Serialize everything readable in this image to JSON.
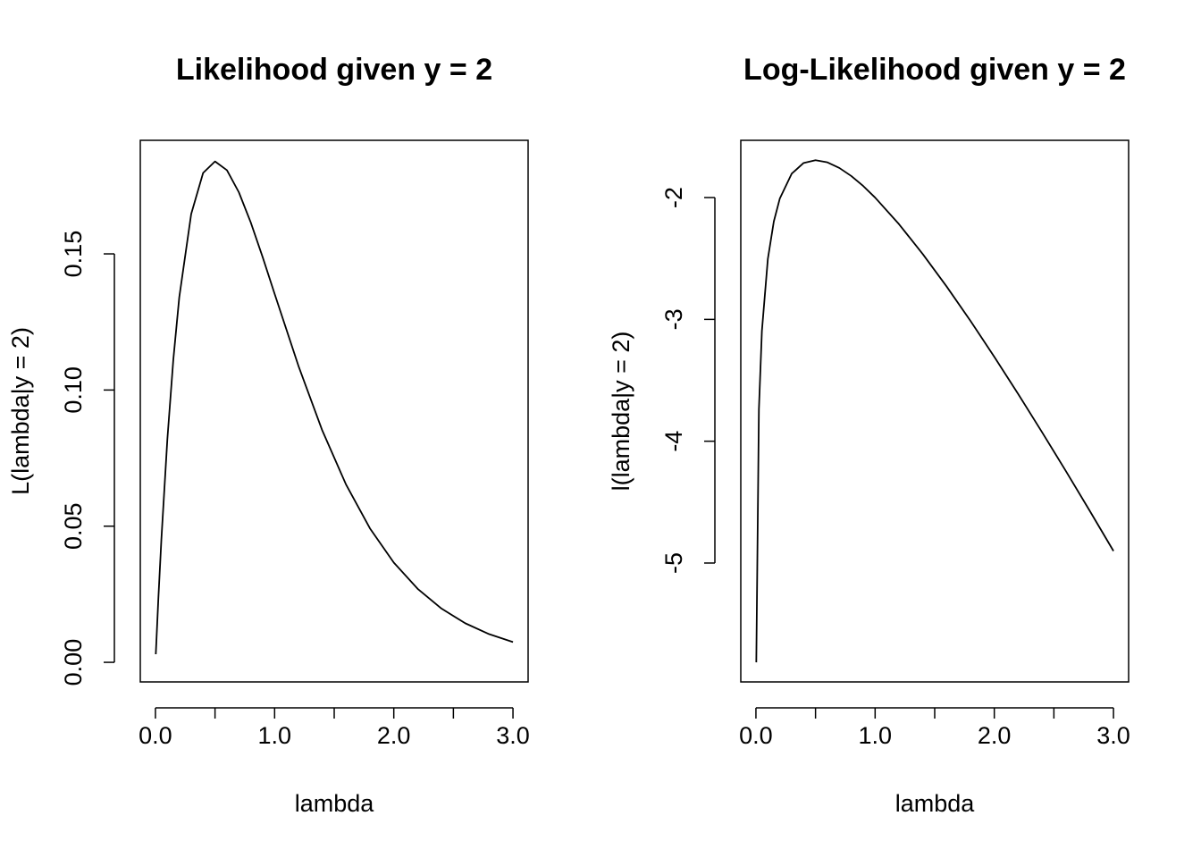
{
  "chart_data": [
    {
      "type": "line",
      "title": "Likelihood given y = 2",
      "x_label": "lambda",
      "y_label": "L(lambda|y = 2)",
      "x": [
        0.003,
        0.025,
        0.05,
        0.1,
        0.15,
        0.2,
        0.3,
        0.4,
        0.5,
        0.6,
        0.7,
        0.8,
        0.9,
        1.0,
        1.2,
        1.4,
        1.6,
        1.8,
        2.0,
        2.2,
        2.4,
        2.6,
        2.8,
        3.0
      ],
      "series": [
        {
          "color": "#000000",
          "values": [
            0.00298,
            0.02378,
            0.04524,
            0.08187,
            0.11112,
            0.13406,
            0.16464,
            0.17973,
            0.18394,
            0.18072,
            0.17262,
            0.16152,
            0.14877,
            0.13534,
            0.10886,
            0.08514,
            0.06522,
            0.04918,
            0.03663,
            0.02701,
            0.01975,
            0.01434,
            0.01035,
            0.00744
          ]
        }
      ],
      "xlim": [
        -0.127,
        3.127
      ],
      "ylim": [
        -0.0072,
        0.1917
      ],
      "xticks": [
        {
          "value": 0,
          "label": "0.0"
        },
        {
          "value": 1,
          "label": "1.0"
        },
        {
          "value": 2,
          "label": "2.0"
        },
        {
          "value": 3,
          "label": "3.0"
        }
      ],
      "xminor_ticks": [
        0.5,
        1.5,
        2.5
      ],
      "yticks": [
        {
          "value": 0,
          "label": "0.00"
        },
        {
          "value": 0.05,
          "label": "0.05"
        },
        {
          "value": 0.1,
          "label": "0.10"
        },
        {
          "value": 0.15,
          "label": "0.15"
        }
      ]
    },
    {
      "type": "line",
      "title": "Log-Likelihood given y = 2",
      "x_label": "lambda",
      "y_label": "l(lambda|y = 2)",
      "x": [
        0.003,
        0.025,
        0.05,
        0.1,
        0.15,
        0.2,
        0.3,
        0.4,
        0.5,
        0.6,
        0.7,
        0.8,
        0.9,
        1.0,
        1.2,
        1.4,
        1.6,
        1.8,
        2.0,
        2.2,
        2.4,
        2.6,
        2.8,
        3.0
      ],
      "series": [
        {
          "color": "#000000",
          "values": [
            -5.815,
            -3.739,
            -3.096,
            -2.503,
            -2.197,
            -2.009,
            -1.804,
            -1.716,
            -1.693,
            -1.711,
            -1.757,
            -1.823,
            -1.905,
            -2,
            -2.218,
            -2.464,
            -2.73,
            -3.012,
            -3.307,
            -3.612,
            -3.925,
            -4.244,
            -4.57,
            -4.901
          ]
        }
      ],
      "xlim": [
        -0.127,
        3.127
      ],
      "ylim": [
        -5.976,
        -1.53
      ],
      "xticks": [
        {
          "value": 0,
          "label": "0.0"
        },
        {
          "value": 1,
          "label": "1.0"
        },
        {
          "value": 2,
          "label": "2.0"
        },
        {
          "value": 3,
          "label": "3.0"
        }
      ],
      "xminor_ticks": [
        0.5,
        1.5,
        2.5
      ],
      "yticks": [
        -2,
        -3,
        -4,
        -5
      ]
    }
  ]
}
